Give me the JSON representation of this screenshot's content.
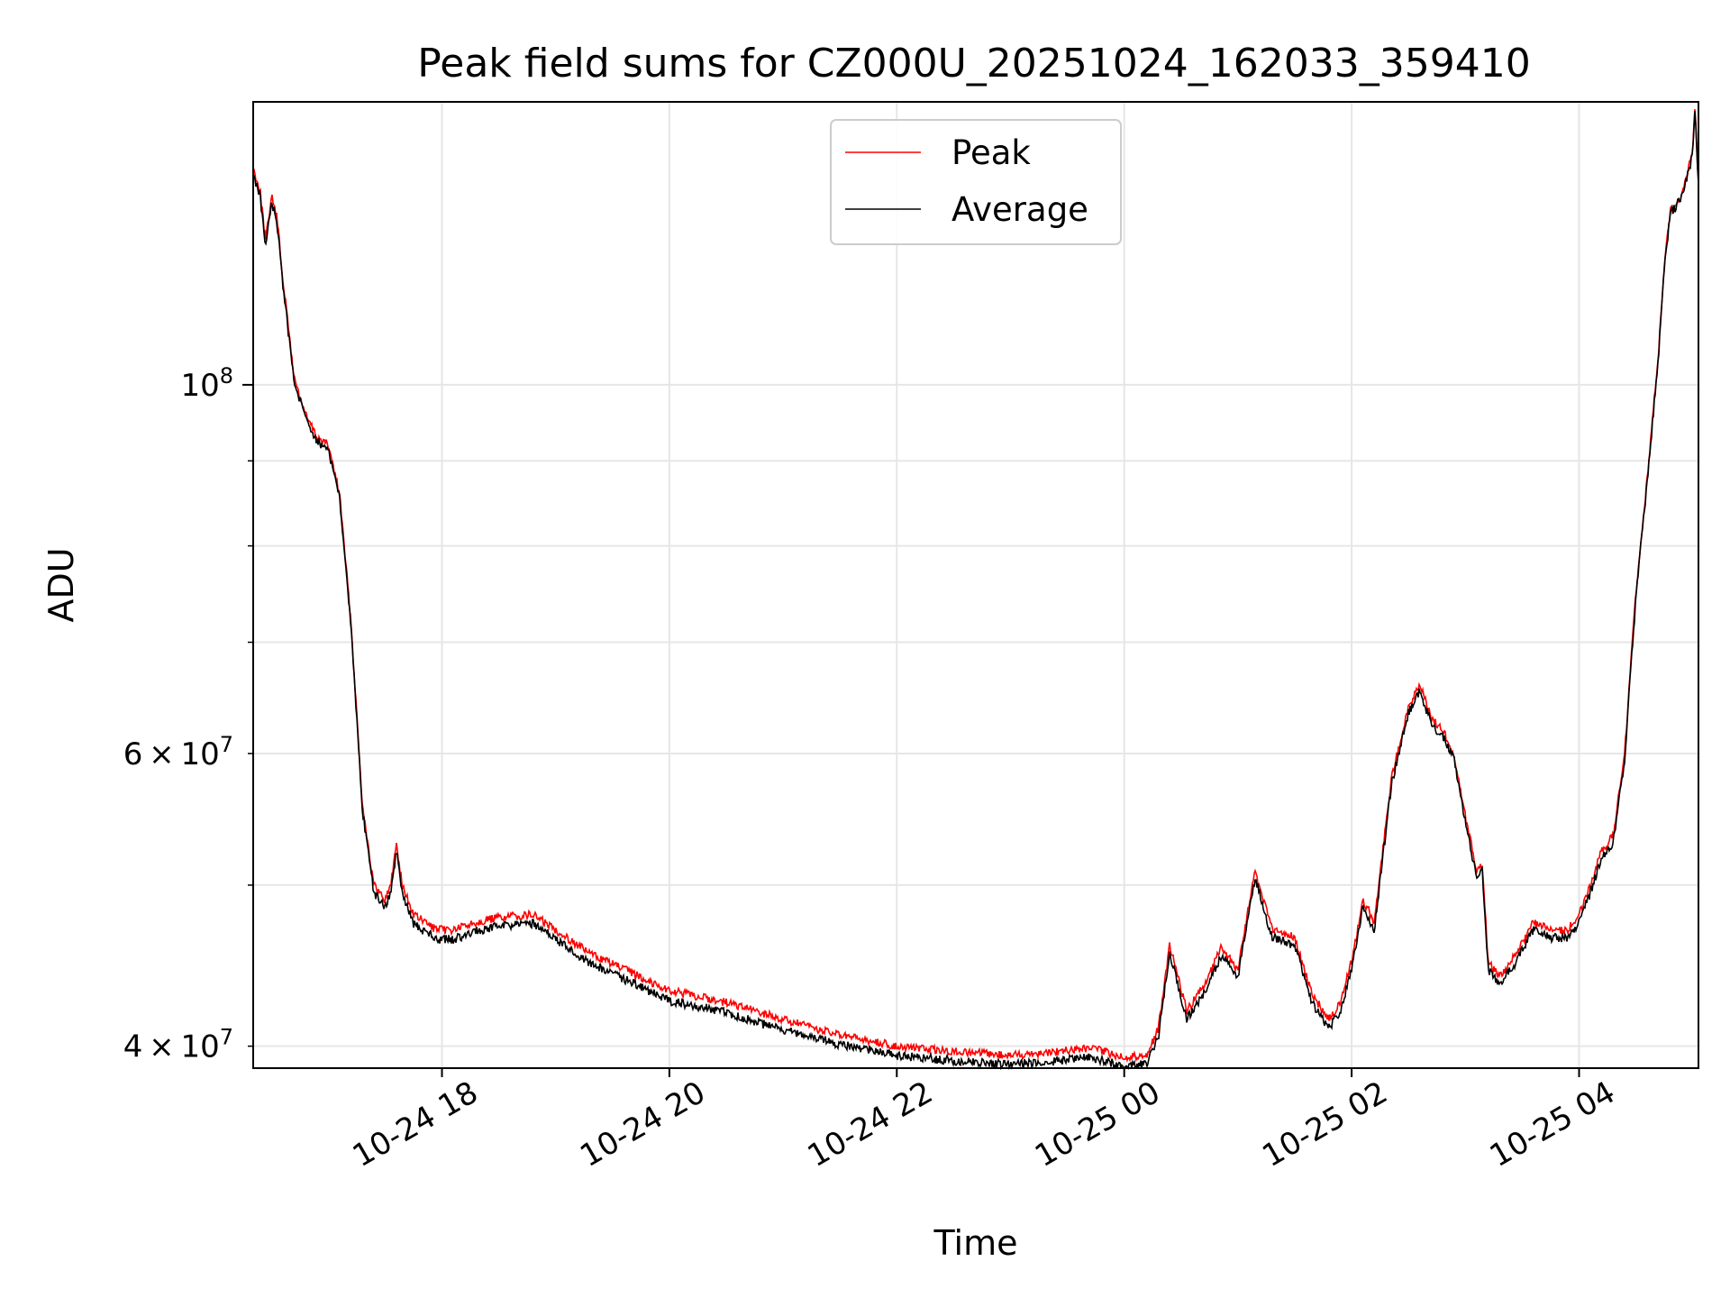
{
  "chart_data": {
    "type": "line",
    "title": "Peak field sums for CZ000U_20251024_162033_359410",
    "xlabel": "Time",
    "ylabel": "ADU",
    "yscale": "log",
    "xlim_hours": [
      16.34,
      29.05
    ],
    "ylim": [
      38800000,
      148000000
    ],
    "xticks": [
      {
        "hour": 18,
        "label": "10-24 18"
      },
      {
        "hour": 20,
        "label": "10-24 20"
      },
      {
        "hour": 22,
        "label": "10-24 22"
      },
      {
        "hour": 24,
        "label": "10-25 00"
      },
      {
        "hour": 26,
        "label": "10-25 02"
      },
      {
        "hour": 28,
        "label": "10-25 04"
      }
    ],
    "yticks_major": [
      {
        "value": 100000000,
        "base": "10",
        "exp": "8"
      }
    ],
    "yticks_minor": [
      {
        "value": 40000000,
        "mant": "4",
        "base": "10",
        "exp": "7"
      },
      {
        "value": 50000000,
        "mant": "",
        "base": "",
        "exp": ""
      },
      {
        "value": 60000000,
        "mant": "6",
        "base": "10",
        "exp": "7"
      },
      {
        "value": 70000000,
        "mant": "",
        "base": "",
        "exp": ""
      },
      {
        "value": 80000000,
        "mant": "",
        "base": "",
        "exp": ""
      },
      {
        "value": 90000000,
        "mant": "",
        "base": "",
        "exp": ""
      }
    ],
    "grid": true,
    "legend_position": "top-center",
    "series": [
      {
        "name": "Peak",
        "color": "#ff0000"
      },
      {
        "name": "Average",
        "color": "#000000"
      }
    ],
    "x_hours": [
      16.34,
      16.4,
      16.45,
      16.5,
      16.55,
      16.6,
      16.7,
      16.8,
      16.9,
      17.0,
      17.1,
      17.2,
      17.3,
      17.4,
      17.5,
      17.55,
      17.6,
      17.65,
      17.75,
      17.85,
      17.95,
      18.1,
      18.3,
      18.5,
      18.8,
      19.0,
      19.3,
      19.6,
      20.0,
      20.5,
      21.0,
      21.5,
      22.0,
      22.5,
      23.0,
      23.4,
      23.7,
      24.0,
      24.2,
      24.3,
      24.4,
      24.55,
      24.7,
      24.85,
      25.0,
      25.15,
      25.3,
      25.5,
      25.65,
      25.8,
      25.9,
      26.0,
      26.1,
      26.2,
      26.35,
      26.5,
      26.6,
      26.7,
      26.8,
      26.9,
      27.0,
      27.1,
      27.15,
      27.2,
      27.3,
      27.45,
      27.6,
      27.75,
      27.9,
      28.0,
      28.1,
      28.2,
      28.3,
      28.4,
      28.5,
      28.6,
      28.7,
      28.75,
      28.8,
      28.9,
      28.95,
      29.0,
      29.02,
      29.04,
      29.05
    ],
    "peak_values": [
      135000000,
      131000000,
      122000000,
      130000000,
      126000000,
      116000000,
      101000000,
      96000000,
      93000000,
      92000000,
      86000000,
      72000000,
      56000000,
      50000000,
      49000000,
      50000000,
      53000000,
      50000000,
      48000000,
      47500000,
      47000000,
      47000000,
      47500000,
      47800000,
      48000000,
      47000000,
      45500000,
      44500000,
      43200000,
      42500000,
      41500000,
      40600000,
      40000000,
      39700000,
      39500000,
      39700000,
      39900000,
      39400000,
      39500000,
      41000000,
      46000000,
      42000000,
      43500000,
      45800000,
      44500000,
      51000000,
      47000000,
      46500000,
      43000000,
      41500000,
      42500000,
      45000000,
      49000000,
      47500000,
      58000000,
      64000000,
      66000000,
      63000000,
      62000000,
      60000000,
      55000000,
      51000000,
      51500000,
      45000000,
      44000000,
      45500000,
      47500000,
      47000000,
      47000000,
      48000000,
      50000000,
      52500000,
      53500000,
      60000000,
      75000000,
      88000000,
      105000000,
      118000000,
      127000000,
      130000000,
      134000000,
      138000000,
      148000000,
      136000000,
      133000000
    ],
    "average_values": [
      134000000,
      130000000,
      121000000,
      129000000,
      125000000,
      115000000,
      100500000,
      95500000,
      92500000,
      91500000,
      85500000,
      71500000,
      55500000,
      49500000,
      48500000,
      49500000,
      52500000,
      49500000,
      47400000,
      46900000,
      46400000,
      46400000,
      46900000,
      47200000,
      47400000,
      46400000,
      44900000,
      43900000,
      42600000,
      41900000,
      40900000,
      40100000,
      39500000,
      39200000,
      39000000,
      39200000,
      39400000,
      38900000,
      39000000,
      40500000,
      45500000,
      41500000,
      43000000,
      45300000,
      44000000,
      50500000,
      46500000,
      46000000,
      42500000,
      41000000,
      42000000,
      44500000,
      48500000,
      47000000,
      57500000,
      63500000,
      65500000,
      62500000,
      61500000,
      59500000,
      54500000,
      50500000,
      51000000,
      44500000,
      43500000,
      45000000,
      47000000,
      46500000,
      46500000,
      47500000,
      49500000,
      52000000,
      53000000,
      59500000,
      74500000,
      87500000,
      104500000,
      117500000,
      126500000,
      129500000,
      133500000,
      137500000,
      147000000,
      135000000,
      132500000
    ]
  }
}
